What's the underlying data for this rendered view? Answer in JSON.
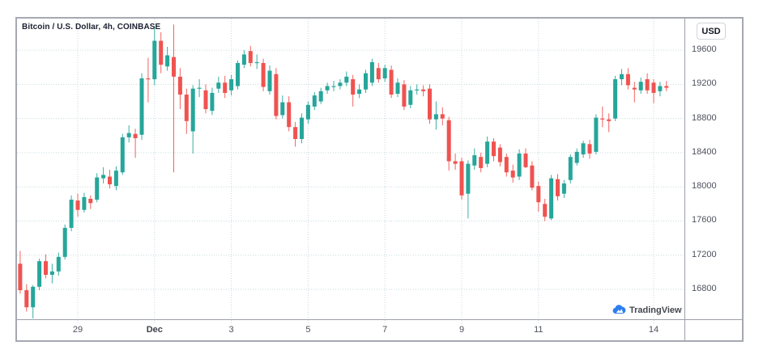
{
  "widget": {
    "title": "Bitcoin / U.S. Dollar, 4h, COINBASE",
    "currency_button_label": "USD",
    "logo_text": "TradingView"
  },
  "colors": {
    "up": "#26a69a",
    "down": "#ef5350",
    "grid": "#c6d9de",
    "separator": "#9b9fa8",
    "border": "#a6a9b1",
    "axis_text": "#4d515c",
    "title_text": "#1b2030",
    "logo_blue": "#2d7ff0",
    "background": "#ffffff"
  },
  "chart_data": {
    "type": "candlestick",
    "title": "Bitcoin / U.S. Dollar, 4h, COINBASE",
    "symbol": "Bitcoin / U.S. Dollar",
    "interval": "4h",
    "exchange": "COINBASE",
    "currency": "USD",
    "grid": true,
    "y_axis": {
      "side": "right",
      "tick_prices": [
        19600,
        19200,
        18800,
        18400,
        18000,
        17600,
        17200,
        16800
      ],
      "render_range": [
        16450,
        19970
      ]
    },
    "x_axis": {
      "tick_labels": [
        "29",
        "Dec",
        "3",
        "5",
        "7",
        "9",
        "11",
        "14"
      ],
      "tick_candle_indices": [
        9,
        21,
        33,
        45,
        57,
        69,
        81,
        99
      ],
      "bold_labels": [
        "Dec"
      ]
    },
    "candles_ohlc": [
      [
        17100,
        17250,
        16750,
        16790
      ],
      [
        16790,
        16860,
        16540,
        16590
      ],
      [
        16590,
        16850,
        16460,
        16830
      ],
      [
        16830,
        17160,
        16790,
        17130
      ],
      [
        17130,
        17210,
        16930,
        16970
      ],
      [
        16970,
        17100,
        16870,
        17010
      ],
      [
        17010,
        17230,
        16960,
        17180
      ],
      [
        17180,
        17560,
        17150,
        17520
      ],
      [
        17520,
        17900,
        17480,
        17850
      ],
      [
        17840,
        17920,
        17650,
        17730
      ],
      [
        17730,
        17930,
        17700,
        17880
      ],
      [
        17860,
        17900,
        17740,
        17810
      ],
      [
        17850,
        18160,
        17820,
        18110
      ],
      [
        18100,
        18230,
        18040,
        18140
      ],
      [
        18120,
        18200,
        17980,
        18030
      ],
      [
        18010,
        18240,
        17960,
        18190
      ],
      [
        18170,
        18620,
        18140,
        18580
      ],
      [
        18580,
        18720,
        18520,
        18630
      ],
      [
        18620,
        18680,
        18340,
        18570
      ],
      [
        18610,
        19330,
        18550,
        19270
      ],
      [
        19270,
        19510,
        18990,
        19260
      ],
      [
        19260,
        19880,
        19190,
        19710
      ],
      [
        19710,
        19810,
        19330,
        19430
      ],
      [
        19410,
        19640,
        19360,
        19540
      ],
      [
        19520,
        19900,
        18170,
        19290
      ],
      [
        19290,
        19390,
        18910,
        19080
      ],
      [
        19080,
        19150,
        18620,
        18770
      ],
      [
        18650,
        19190,
        18390,
        19150
      ],
      [
        19150,
        19260,
        19050,
        19160
      ],
      [
        19130,
        19200,
        18860,
        18910
      ],
      [
        18890,
        19160,
        18840,
        19100
      ],
      [
        19150,
        19290,
        19100,
        19220
      ],
      [
        19220,
        19300,
        19040,
        19100
      ],
      [
        19130,
        19310,
        19070,
        19260
      ],
      [
        19180,
        19480,
        19140,
        19450
      ],
      [
        19430,
        19600,
        19390,
        19550
      ],
      [
        19590,
        19650,
        19410,
        19450
      ],
      [
        19450,
        19550,
        19380,
        19460
      ],
      [
        19450,
        19500,
        19120,
        19170
      ],
      [
        19120,
        19420,
        19080,
        19360
      ],
      [
        19320,
        19390,
        18790,
        18830
      ],
      [
        18840,
        19070,
        18800,
        18990
      ],
      [
        18990,
        19060,
        18650,
        18700
      ],
      [
        18700,
        18760,
        18470,
        18560
      ],
      [
        18560,
        18860,
        18510,
        18810
      ],
      [
        18790,
        19000,
        18740,
        18960
      ],
      [
        18940,
        19110,
        18900,
        19070
      ],
      [
        19000,
        19160,
        18970,
        19120
      ],
      [
        19130,
        19220,
        19090,
        19180
      ],
      [
        19170,
        19240,
        19120,
        19180
      ],
      [
        19180,
        19260,
        19140,
        19220
      ],
      [
        19220,
        19350,
        19180,
        19290
      ],
      [
        19260,
        19310,
        18940,
        19080
      ],
      [
        19090,
        19200,
        19040,
        19140
      ],
      [
        19140,
        19370,
        19100,
        19330
      ],
      [
        19220,
        19500,
        19180,
        19460
      ],
      [
        19390,
        19450,
        19220,
        19260
      ],
      [
        19270,
        19430,
        19230,
        19390
      ],
      [
        19370,
        19420,
        19040,
        19080
      ],
      [
        19090,
        19270,
        19050,
        19220
      ],
      [
        19200,
        19250,
        18900,
        18940
      ],
      [
        18960,
        19180,
        18920,
        19130
      ],
      [
        19130,
        19200,
        19080,
        19140
      ],
      [
        19140,
        19190,
        19060,
        19120
      ],
      [
        19150,
        19200,
        18740,
        18790
      ],
      [
        18790,
        19000,
        18670,
        18850
      ],
      [
        18850,
        18930,
        18720,
        18800
      ],
      [
        18780,
        18820,
        18190,
        18300
      ],
      [
        18300,
        18390,
        18200,
        18270
      ],
      [
        18300,
        18340,
        17850,
        17900
      ],
      [
        17920,
        18310,
        17630,
        18270
      ],
      [
        18250,
        18450,
        18200,
        18370
      ],
      [
        18350,
        18400,
        18170,
        18220
      ],
      [
        18270,
        18590,
        18230,
        18530
      ],
      [
        18530,
        18570,
        18300,
        18360
      ],
      [
        18460,
        18500,
        18240,
        18290
      ],
      [
        18350,
        18390,
        18120,
        18170
      ],
      [
        18190,
        18260,
        18050,
        18110
      ],
      [
        18120,
        18440,
        18080,
        18390
      ],
      [
        18390,
        18450,
        18220,
        18230
      ],
      [
        18250,
        18300,
        17960,
        17990
      ],
      [
        18010,
        18060,
        17710,
        17820
      ],
      [
        17800,
        17860,
        17600,
        17650
      ],
      [
        17630,
        18140,
        17610,
        18100
      ],
      [
        18090,
        18150,
        17840,
        17890
      ],
      [
        17920,
        18080,
        17870,
        18040
      ],
      [
        18080,
        18380,
        18040,
        18350
      ],
      [
        18280,
        18450,
        18250,
        18410
      ],
      [
        18380,
        18540,
        18340,
        18510
      ],
      [
        18500,
        18550,
        18330,
        18390
      ],
      [
        18410,
        18850,
        18380,
        18810
      ],
      [
        18800,
        18940,
        18700,
        18790
      ],
      [
        18790,
        18860,
        18640,
        18770
      ],
      [
        18800,
        19300,
        18770,
        19260
      ],
      [
        19260,
        19380,
        19190,
        19320
      ],
      [
        19320,
        19390,
        19140,
        19190
      ],
      [
        19160,
        19230,
        18990,
        19140
      ],
      [
        19130,
        19280,
        19090,
        19230
      ],
      [
        19260,
        19330,
        19090,
        19130
      ],
      [
        19220,
        19260,
        18980,
        19100
      ],
      [
        19120,
        19230,
        19060,
        19180
      ],
      [
        19180,
        19240,
        19120,
        19160
      ]
    ]
  }
}
